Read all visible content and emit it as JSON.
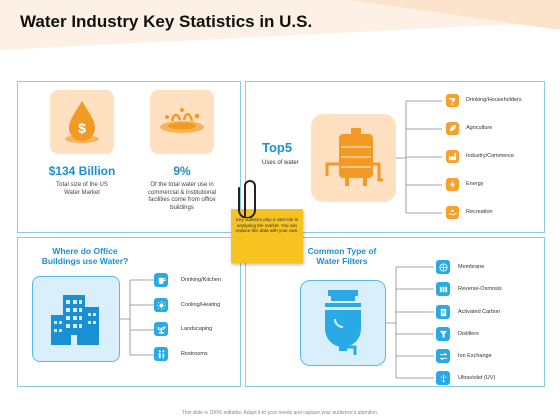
{
  "title": "Water Industry Key Statistics in U.S.",
  "colors": {
    "accent_blue": "#1a8fd4",
    "icon_blue": "#29a9e6",
    "orange": "#f8a02a",
    "tile_peach": "#ffe1c2",
    "note_yellow": "#f7c320"
  },
  "stats": [
    {
      "value": "$134 Billion",
      "desc_lines": [
        "Total size of the US",
        "Water Market"
      ],
      "icon": "money-drop-icon"
    },
    {
      "value": "9%",
      "desc_lines": [
        "Of the total water use in",
        "commercial & institutional",
        "facilities come from office",
        "buildings"
      ],
      "icon": "water-splash-icon"
    }
  ],
  "top5": {
    "heading": "Top5",
    "sub": "Uses of water",
    "icon": "water-tank-icon",
    "items": [
      {
        "label": "Drinking/Householders",
        "icon": "tap-icon"
      },
      {
        "label": "Agriculture",
        "icon": "leaf-icon"
      },
      {
        "label": "Industry/Commerce",
        "icon": "factory-icon"
      },
      {
        "label": "Energy",
        "icon": "energy-icon"
      },
      {
        "label": "Recreation",
        "icon": "recreation-icon"
      }
    ]
  },
  "office": {
    "heading_lines": [
      "Where do Office",
      "Buildings use Water?"
    ],
    "icon": "buildings-icon",
    "items": [
      {
        "label": "Drinking/Kitchen",
        "icon": "cup-icon"
      },
      {
        "label": "Cooling/Heating",
        "icon": "sun-icon"
      },
      {
        "label": "Landscaping",
        "icon": "plant-icon"
      },
      {
        "label": "Restrooms",
        "icon": "restroom-icon"
      }
    ]
  },
  "filters": {
    "heading_lines": [
      "Common Type of",
      "Water Filters"
    ],
    "icon": "water-filter-icon",
    "items": [
      {
        "label": "Membrane",
        "icon": "membrane-icon"
      },
      {
        "label": "Reverse-Osmosis",
        "icon": "osmosis-icon"
      },
      {
        "label": "Activated Carbon",
        "icon": "carbon-icon"
      },
      {
        "label": "Distillers",
        "icon": "funnel-icon"
      },
      {
        "label": "Ion Exchange",
        "icon": "exchange-icon"
      },
      {
        "label": "Ultraviolet (UV)",
        "icon": "uv-icon"
      }
    ]
  },
  "note": {
    "text": "Key statistics play a vital role in analysing the market. You can replace this data with your own."
  },
  "footer": "This slide is 100% editable. Adapt it to your needs and capture your audience's attention."
}
